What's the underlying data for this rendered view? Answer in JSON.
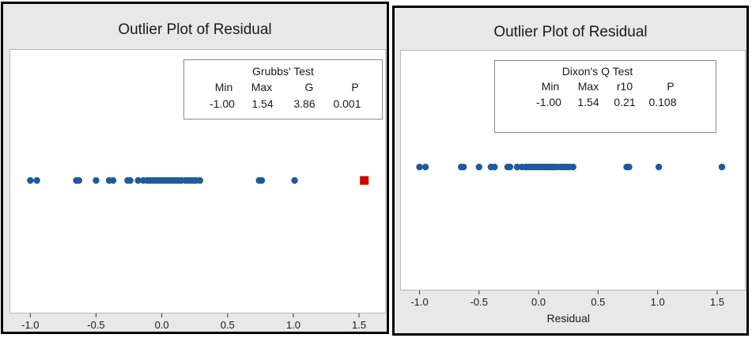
{
  "chart_data": [
    {
      "type": "scatter",
      "title": "Outlier Plot of Residual",
      "xlabel": "",
      "xlim": [
        -1.05,
        1.62
      ],
      "xticks": [
        -1.0,
        -0.5,
        0.0,
        0.5,
        1.0,
        1.5
      ],
      "xtick_labels": [
        "-1.0",
        "-0.5",
        "0.0",
        "0.5",
        "1.0",
        "1.5"
      ],
      "point_color": "#1f5a9e",
      "outlier_color": "#cc0000",
      "points": [
        -1.0,
        -0.95,
        -0.65,
        -0.63,
        -0.5,
        -0.4,
        -0.37,
        -0.26,
        -0.24,
        -0.18,
        -0.14,
        -0.11,
        -0.09,
        -0.07,
        -0.05,
        -0.03,
        -0.01,
        0.01,
        0.03,
        0.05,
        0.07,
        0.09,
        0.11,
        0.13,
        0.15,
        0.18,
        0.2,
        0.22,
        0.24,
        0.26,
        0.29,
        0.74,
        0.76,
        1.01
      ],
      "outliers": [
        1.54
      ],
      "stats": {
        "title": "Grubbs' Test",
        "headers": [
          "Min",
          "Max",
          "G",
          "P"
        ],
        "values": [
          "-1.00",
          "1.54",
          "3.86",
          "0.001"
        ]
      }
    },
    {
      "type": "scatter",
      "title": "Outlier Plot of Residual",
      "xlabel": "Residual",
      "xlim": [
        -1.05,
        1.62
      ],
      "xticks": [
        -1.0,
        -0.5,
        0.0,
        0.5,
        1.0,
        1.5
      ],
      "xtick_labels": [
        "-1.0",
        "-0.5",
        "0.0",
        "0.5",
        "1.0",
        "1.5"
      ],
      "point_color": "#1f5a9e",
      "points": [
        -1.0,
        -0.95,
        -0.65,
        -0.63,
        -0.5,
        -0.4,
        -0.37,
        -0.26,
        -0.24,
        -0.18,
        -0.14,
        -0.11,
        -0.09,
        -0.07,
        -0.05,
        -0.03,
        -0.01,
        0.01,
        0.03,
        0.05,
        0.07,
        0.09,
        0.11,
        0.13,
        0.15,
        0.18,
        0.2,
        0.22,
        0.24,
        0.26,
        0.29,
        0.74,
        0.76,
        1.01,
        1.54
      ],
      "outliers": [],
      "stats": {
        "title": "Dixon's Q Test",
        "headers": [
          "Min",
          "Max",
          "r10",
          "P"
        ],
        "values": [
          "-1.00",
          "1.54",
          "0.21",
          "0.108"
        ]
      }
    }
  ]
}
